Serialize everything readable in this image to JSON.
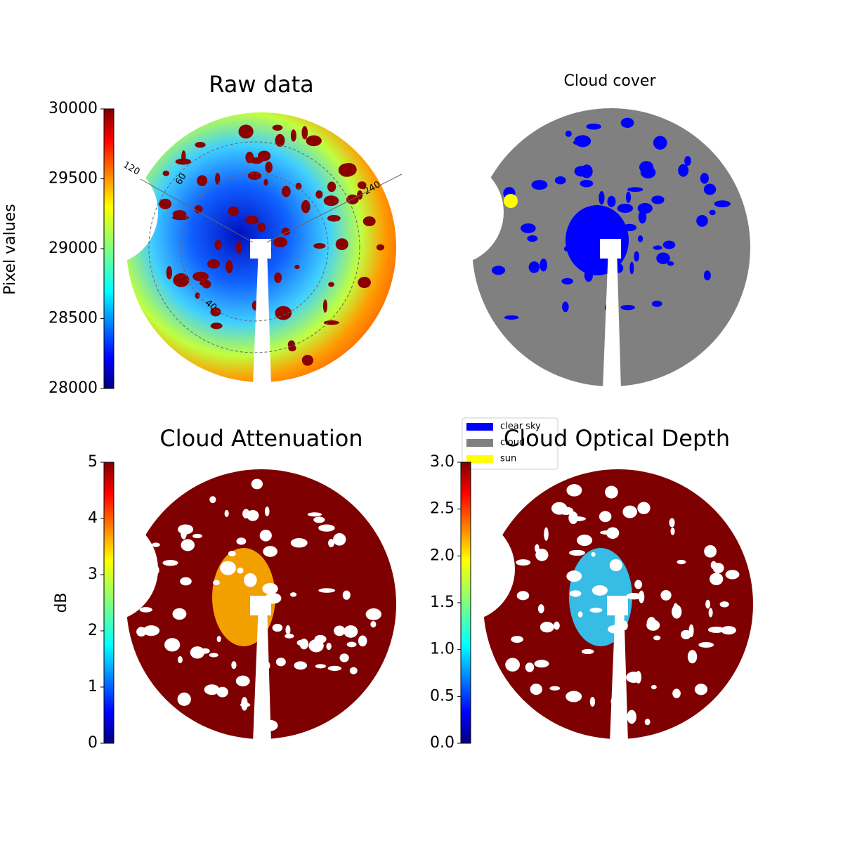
{
  "chart_data": [
    {
      "type": "image",
      "title": "Raw data",
      "colorbar_label": "Pixel values",
      "ylim": [
        28000,
        30000
      ],
      "yticks": [
        28000,
        28500,
        29000,
        29500,
        30000
      ],
      "annotations": [
        "120",
        "60",
        "240",
        "40"
      ]
    },
    {
      "type": "image",
      "title": "Cloud cover",
      "series": [
        {
          "name": "clear sky",
          "color": "#0000ff"
        },
        {
          "name": "cloud",
          "color": "#808080"
        },
        {
          "name": "sun",
          "color": "#ffff00"
        }
      ]
    },
    {
      "type": "image",
      "title": "Cloud Attenuation",
      "colorbar_label": "dB",
      "ylim": [
        0,
        5
      ],
      "yticks": [
        0,
        1,
        2,
        3,
        4,
        5
      ]
    },
    {
      "type": "image",
      "title": "Cloud Optical Depth",
      "ylim": [
        0,
        3
      ],
      "yticks": [
        {
          "value": 0,
          "label": "0.0"
        },
        0.5,
        {
          "value": 1,
          "label": "1.0"
        },
        1.5,
        {
          "value": 2,
          "label": "2.0"
        },
        2.5,
        {
          "value": 3,
          "label": "3.0"
        }
      ]
    }
  ]
}
